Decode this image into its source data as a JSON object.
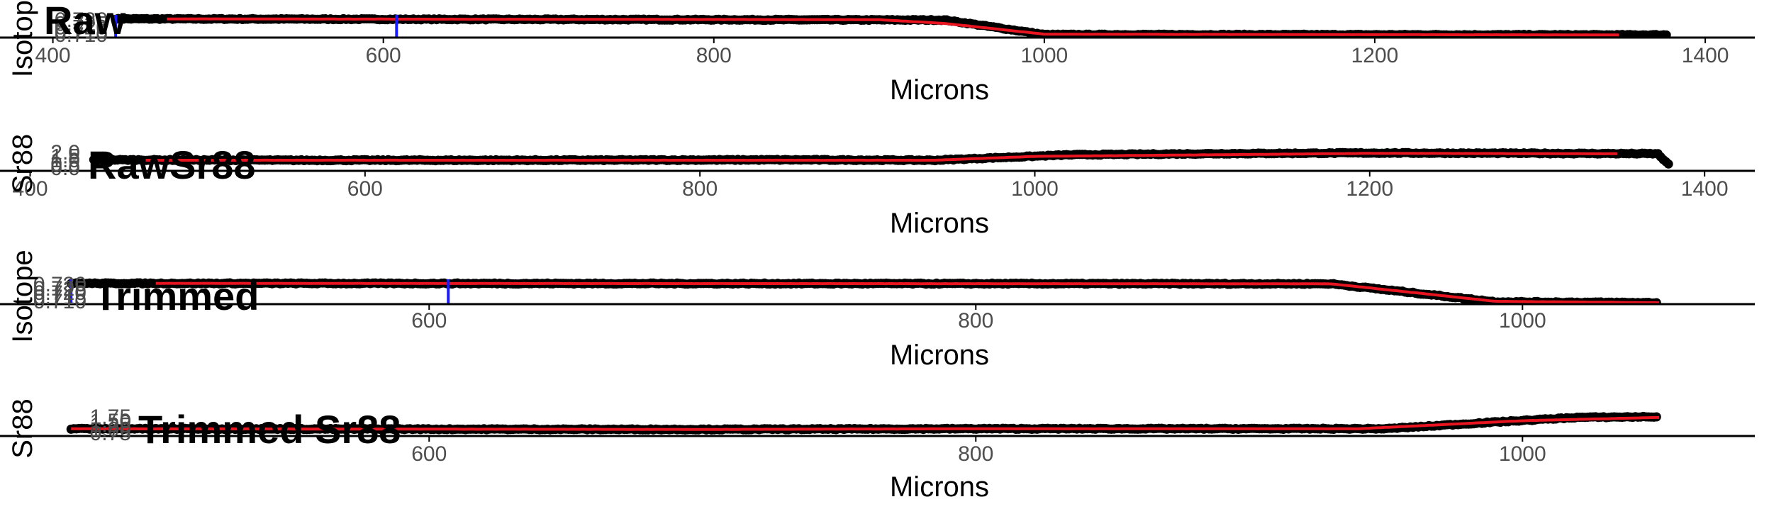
{
  "colors": {
    "points": "#000000",
    "smooth": "#e8141f",
    "markers": "#1a1aff",
    "axis": "#000000",
    "tick_text": "#4d4d4d"
  },
  "chart_data": [
    {
      "type": "scatter",
      "title": "Raw",
      "xlabel": "Microns",
      "ylabel": "Isotope",
      "xlim": [
        368,
        1430
      ],
      "ylim": [
        0.7075,
        0.7325
      ],
      "x_ticks": [
        400,
        600,
        800,
        1000,
        1200,
        1400
      ],
      "y_ticks": [
        "0.710",
        "0.715",
        "0.720",
        "0.725",
        "0.730"
      ],
      "series": [
        {
          "x": [
            438,
            940,
            1000,
            1378
          ],
          "y": [
            0.731,
            0.7295,
            0.7105,
            0.71
          ]
        },
        {
          "x": [
            469,
            900,
            940,
            1000,
            1350
          ],
          "y": [
            0.731,
            0.73,
            0.725,
            0.711,
            0.71
          ]
        }
      ],
      "vlines": [
        438,
        608
      ]
    },
    {
      "type": "scatter",
      "title": "RawSr88",
      "xlabel": "Microns",
      "ylabel": "Sr88",
      "xlim": [
        382,
        1430
      ],
      "ylim": [
        -0.3,
        2.3
      ],
      "x_ticks": [
        400,
        600,
        800,
        1000,
        1200,
        1400
      ],
      "y_ticks": [
        "0.0",
        "0.5",
        "1.0",
        "1.5",
        "2.0"
      ],
      "series": [
        {
          "x": [
            438,
            550,
            700,
            850,
            940,
            980,
            1020,
            1100,
            1200,
            1300,
            1372,
            1380
          ],
          "y": [
            1.05,
            1.0,
            1.0,
            1.05,
            1.0,
            1.35,
            1.7,
            1.85,
            1.95,
            1.9,
            1.85,
            0.1
          ]
        },
        {
          "x": [
            469,
            940,
            1000,
            1200,
            1350
          ],
          "y": [
            1.0,
            1.0,
            1.5,
            1.9,
            1.85
          ]
        }
      ],
      "vlines": []
    },
    {
      "type": "scatter",
      "title": "Trimmed",
      "xlabel": "Microns",
      "ylabel": "Isotope",
      "xlim": [
        443,
        1085
      ],
      "ylim": [
        0.7098,
        0.7317
      ],
      "x_ticks": [
        600,
        800,
        1000
      ],
      "y_ticks": [
        "0.710",
        "0.715",
        "0.720",
        "0.725",
        "0.730"
      ],
      "series": [
        {
          "x": [
            469,
            930,
            990,
            1050
          ],
          "y": [
            0.7305,
            0.73,
            0.7115,
            0.7105
          ]
        },
        {
          "x": [
            500,
            930,
            990,
            1050
          ],
          "y": [
            0.7305,
            0.73,
            0.712,
            0.7105
          ]
        }
      ],
      "vlines": [
        469,
        607
      ]
    },
    {
      "type": "scatter",
      "title": "Trimmed Sr88",
      "xlabel": "Microns",
      "ylabel": "Sr88",
      "xlim": [
        443,
        1085
      ],
      "ylim": [
        0.51,
        2.05
      ],
      "x_ticks": [
        600,
        800,
        1000
      ],
      "y_ticks": [
        "0.75",
        "1.00",
        "1.25",
        "1.50",
        "1.75"
      ],
      "series": [
        {
          "x": [
            469,
            700,
            800,
            900,
            950,
            990,
            1020,
            1050
          ],
          "y": [
            1.0,
            0.95,
            1.0,
            1.0,
            1.0,
            1.5,
            1.85,
            1.9
          ]
        },
        {
          "x": [
            469,
            700,
            800,
            940,
            1000,
            1050
          ],
          "y": [
            1.0,
            0.95,
            1.0,
            1.0,
            1.6,
            1.85
          ]
        }
      ],
      "vlines": []
    }
  ]
}
